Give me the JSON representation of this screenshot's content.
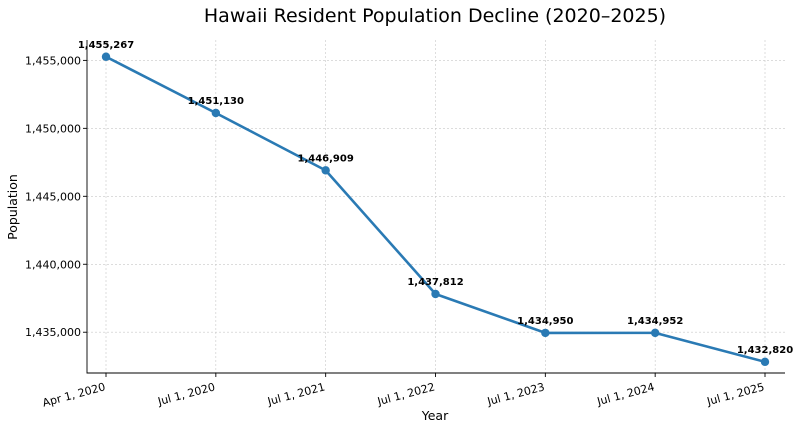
{
  "chart_data": {
    "type": "line",
    "title": "Hawaii Resident Population Decline (2020–2025)",
    "xlabel": "Year",
    "ylabel": "Population",
    "categories": [
      "Apr 1, 2020",
      "Jul 1, 2020",
      "Jul 1, 2021",
      "Jul 1, 2022",
      "Jul 1, 2023",
      "Jul 1, 2024",
      "Jul 1, 2025"
    ],
    "values": [
      1455267,
      1451130,
      1446909,
      1437812,
      1434950,
      1434952,
      1432820
    ],
    "data_labels": [
      "1,455,267",
      "1,451,130",
      "1,446,909",
      "1,437,812",
      "1,434,950",
      "1,434,952",
      "1,432,820"
    ],
    "y_ticks": [
      1435000,
      1440000,
      1445000,
      1450000,
      1455000
    ],
    "y_tick_labels": [
      "1,435,000",
      "1,440,000",
      "1,445,000",
      "1,450,000",
      "1,455,000"
    ],
    "ylim": [
      1432000,
      1456500
    ],
    "grid": true,
    "line_color": "#2a7ab4",
    "marker": "circle"
  }
}
